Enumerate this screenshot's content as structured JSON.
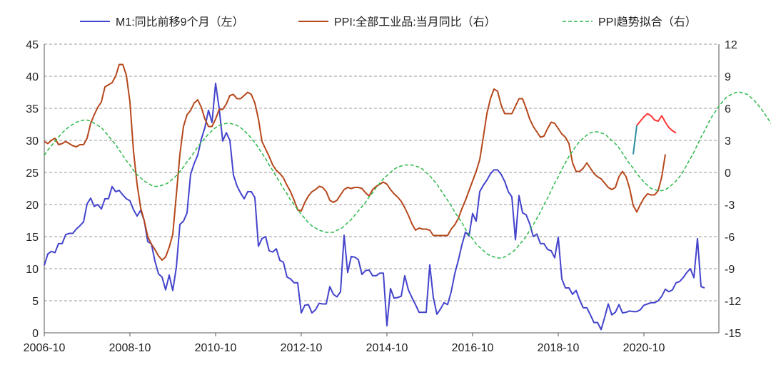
{
  "chart_data": {
    "type": "line",
    "x_ticks": [
      "2006-10",
      "2008-10",
      "2010-10",
      "2012-10",
      "2014-10",
      "2016-10",
      "2018-10",
      "2020-10"
    ],
    "y_left": {
      "min": 0,
      "max": 45,
      "ticks": [
        "0",
        "5",
        "10",
        "15",
        "20",
        "25",
        "30",
        "35",
        "40",
        "45"
      ]
    },
    "y_right": {
      "min": -15,
      "max": 12,
      "ticks": [
        "-15",
        "-12",
        "-9",
        "-6",
        "-3",
        "0",
        "3",
        "6",
        "9",
        "12"
      ]
    },
    "grid": "horizontal-dashed",
    "legend_position": "top",
    "series": [
      {
        "name": "M1:同比前移9个月（左）",
        "axis": "left",
        "color": "#4444cc",
        "style": "solid",
        "x_start": "2006-10",
        "values": [
          10.5,
          12.3,
          12.7,
          12.5,
          13.9,
          13.9,
          15.3,
          15.5,
          15.5,
          16.2,
          16.7,
          17.3,
          20.1,
          21.0,
          19.7,
          20.0,
          19.3,
          20.9,
          20.9,
          22.8,
          22.0,
          22.2,
          21.5,
          20.9,
          20.6,
          19.2,
          18.2,
          19.1,
          17.5,
          14.2,
          13.9,
          11.2,
          9.2,
          8.7,
          6.7,
          9.0,
          6.6,
          10.2,
          16.9,
          17.4,
          18.7,
          24.7,
          26.4,
          27.7,
          30.2,
          32.0,
          34.7,
          32.8,
          38.9,
          35.0,
          29.9,
          31.2,
          30.0,
          24.6,
          22.9,
          21.8,
          20.9,
          22.0,
          22.0,
          21.1,
          13.5,
          14.7,
          15.0,
          12.8,
          12.6,
          13.1,
          11.3,
          11.0,
          8.7,
          8.4,
          7.8,
          7.8,
          3.1,
          4.3,
          4.4,
          3.1,
          3.6,
          4.6,
          4.5,
          4.5,
          7.2,
          6.0,
          5.6,
          6.4,
          15.2,
          9.4,
          11.9,
          11.8,
          11.4,
          9.1,
          9.7,
          9.8,
          8.9,
          8.9,
          9.3,
          9.3,
          1.1,
          6.9,
          5.4,
          5.5,
          5.7,
          8.9,
          6.7,
          5.5,
          4.4,
          3.2,
          3.2,
          3.2,
          10.6,
          5.5,
          2.9,
          3.7,
          4.7,
          4.4,
          6.4,
          9.2,
          11.3,
          13.7,
          15.7,
          15.1,
          18.6,
          17.4,
          22.0,
          23.0,
          23.8,
          24.8,
          25.4,
          25.4,
          24.7,
          23.6,
          22.0,
          21.2,
          14.5,
          21.4,
          18.7,
          18.4,
          17.0,
          15.0,
          15.4,
          13.9,
          13.9,
          13.0,
          12.8,
          11.7,
          14.9,
          8.4,
          7.0,
          7.0,
          6.0,
          6.6,
          5.1,
          3.9,
          3.9,
          2.8,
          1.6,
          1.6,
          0.5,
          2.4,
          4.5,
          2.8,
          3.2,
          4.4,
          3.1,
          3.2,
          3.4,
          3.3,
          3.3,
          3.6,
          4.3,
          4.5,
          4.7,
          4.7,
          5.0,
          5.7,
          6.8,
          6.4,
          6.7,
          7.8,
          8.0,
          8.6,
          9.4,
          10.0,
          8.6,
          14.7,
          7.2,
          7.0
        ]
      },
      {
        "name": "PPI:全部工业品:当月同比（右）",
        "axis": "right",
        "color": "#b5471b",
        "style": "solid",
        "x_start": "2006-10",
        "values": [
          2.9,
          2.7,
          3.0,
          3.2,
          2.6,
          2.7,
          2.9,
          2.7,
          2.5,
          2.4,
          2.6,
          2.6,
          3.2,
          4.6,
          5.4,
          6.1,
          6.6,
          8.0,
          8.2,
          8.4,
          9.0,
          10.1,
          10.1,
          9.1,
          6.6,
          2.0,
          -1.1,
          -3.3,
          -4.5,
          -6.0,
          -6.7,
          -7.2,
          -7.8,
          -8.2,
          -7.9,
          -7.0,
          -5.8,
          -2.1,
          1.7,
          4.3,
          5.4,
          5.8,
          6.5,
          6.8,
          6.1,
          5.0,
          4.3,
          4.3,
          5.0,
          5.9,
          5.9,
          6.4,
          7.2,
          7.3,
          6.9,
          6.9,
          7.2,
          7.5,
          7.3,
          6.5,
          5.0,
          2.9,
          2.2,
          1.5,
          0.7,
          0.2,
          -0.1,
          -0.5,
          -1.2,
          -1.8,
          -2.6,
          -3.5,
          -3.6,
          -2.8,
          -2.2,
          -1.8,
          -1.6,
          -1.3,
          -1.4,
          -1.8,
          -2.6,
          -2.8,
          -2.6,
          -2.1,
          -1.6,
          -1.4,
          -1.5,
          -1.4,
          -1.4,
          -1.5,
          -1.9,
          -2.2,
          -1.6,
          -1.3,
          -1.1,
          -0.9,
          -1.1,
          -1.6,
          -2.0,
          -2.3,
          -2.7,
          -3.3,
          -4.0,
          -4.8,
          -5.4,
          -5.2,
          -5.3,
          -5.3,
          -5.4,
          -5.9,
          -5.9,
          -5.9,
          -5.9,
          -5.9,
          -5.3,
          -4.9,
          -4.3,
          -3.4,
          -2.6,
          -1.7,
          -0.8,
          0.1,
          1.2,
          3.3,
          5.5,
          6.9,
          7.8,
          7.6,
          6.3,
          5.5,
          5.5,
          5.5,
          6.2,
          6.9,
          6.9,
          6.0,
          5.0,
          4.3,
          3.8,
          3.3,
          3.4,
          4.1,
          4.7,
          4.6,
          4.1,
          3.6,
          3.3,
          2.7,
          0.9,
          0.1,
          0.1,
          0.4,
          0.9,
          0.4,
          -0.1,
          -0.4,
          -0.6,
          -1.0,
          -1.4,
          -1.6,
          -1.4,
          -0.4,
          0.1,
          -0.4,
          -1.5,
          -3.1,
          -3.7,
          -3.0,
          -2.4,
          -2.0,
          -2.1,
          -2.1,
          -1.7,
          -0.4,
          1.7
        ]
      },
      {
        "name": "",
        "axis": "right",
        "color": "#2f8fa0",
        "style": "solid",
        "x_start": "2020-07",
        "values": [
          1.7,
          4.4
        ]
      },
      {
        "name": "",
        "axis": "right",
        "color": "#ff3333",
        "style": "solid",
        "x_start": "2020-08",
        "values": [
          4.4,
          4.8,
          5.2,
          5.5,
          5.3,
          4.9,
          4.8,
          5.3,
          4.7,
          4.2,
          3.9,
          3.7
        ]
      },
      {
        "name": "PPI趋势拟合（右）",
        "axis": "right",
        "color": "#2bb84a",
        "style": "dashed",
        "x_start": "2006-10",
        "values": [
          1.6,
          2.1,
          2.5,
          2.9,
          3.3,
          3.7,
          4.0,
          4.3,
          4.5,
          4.7,
          4.8,
          4.9,
          4.9,
          4.8,
          4.6,
          4.4,
          4.2,
          3.8,
          3.4,
          3.0,
          2.6,
          2.1,
          1.6,
          1.1,
          0.7,
          0.2,
          -0.2,
          -0.5,
          -0.8,
          -1.0,
          -1.2,
          -1.3,
          -1.3,
          -1.2,
          -1.1,
          -0.9,
          -0.6,
          -0.3,
          0.1,
          0.5,
          1.0,
          1.4,
          1.9,
          2.4,
          2.8,
          3.2,
          3.6,
          3.9,
          4.2,
          4.4,
          4.5,
          4.6,
          4.6,
          4.5,
          4.4,
          4.2,
          3.9,
          3.6,
          3.2,
          2.8,
          2.3,
          1.8,
          1.3,
          0.7,
          0.2,
          -0.4,
          -0.9,
          -1.5,
          -2.0,
          -2.6,
          -3.0,
          -3.5,
          -3.9,
          -4.3,
          -4.7,
          -5.0,
          -5.2,
          -5.4,
          -5.5,
          -5.6,
          -5.6,
          -5.6,
          -5.4,
          -5.3,
          -5.0,
          -4.7,
          -4.4,
          -4.0,
          -3.6,
          -3.2,
          -2.8,
          -2.3,
          -1.9,
          -1.4,
          -1.0,
          -0.6,
          -0.3,
          0.0,
          0.3,
          0.5,
          0.6,
          0.7,
          0.7,
          0.7,
          0.6,
          0.5,
          0.3,
          0.0,
          -0.3,
          -0.7,
          -1.1,
          -1.6,
          -2.1,
          -2.6,
          -3.1,
          -3.7,
          -4.2,
          -4.7,
          -5.3,
          -5.8,
          -6.2,
          -6.7,
          -7.0,
          -7.3,
          -7.6,
          -7.8,
          -7.9,
          -8.0,
          -8.0,
          -7.9,
          -7.7,
          -7.5,
          -7.2,
          -6.8,
          -6.4,
          -6.0,
          -5.4,
          -4.9,
          -4.3,
          -3.7,
          -3.0,
          -2.4,
          -1.7,
          -1.0,
          -0.4,
          0.3,
          0.9,
          1.5,
          2.0,
          2.5,
          2.9,
          3.2,
          3.5,
          3.7,
          3.8,
          3.8,
          3.7,
          3.6,
          3.3,
          3.0,
          2.7,
          2.3,
          1.8,
          1.3,
          0.8,
          0.4,
          -0.1,
          -0.5,
          -0.9,
          -1.2,
          -1.5,
          -1.6,
          -1.7,
          -1.7,
          -1.6,
          -1.4,
          -1.1,
          -0.8,
          -0.4,
          0.1,
          0.7,
          1.3,
          1.9,
          2.6,
          3.3,
          3.9,
          4.6,
          5.2,
          5.7,
          6.2,
          6.6,
          7.0,
          7.2,
          7.4,
          7.5,
          7.5,
          7.4,
          7.3,
          7.0,
          6.7,
          6.3,
          5.9,
          5.4,
          4.9,
          4.4,
          3.9,
          3.4,
          3.0,
          2.6,
          2.2
        ]
      }
    ]
  }
}
